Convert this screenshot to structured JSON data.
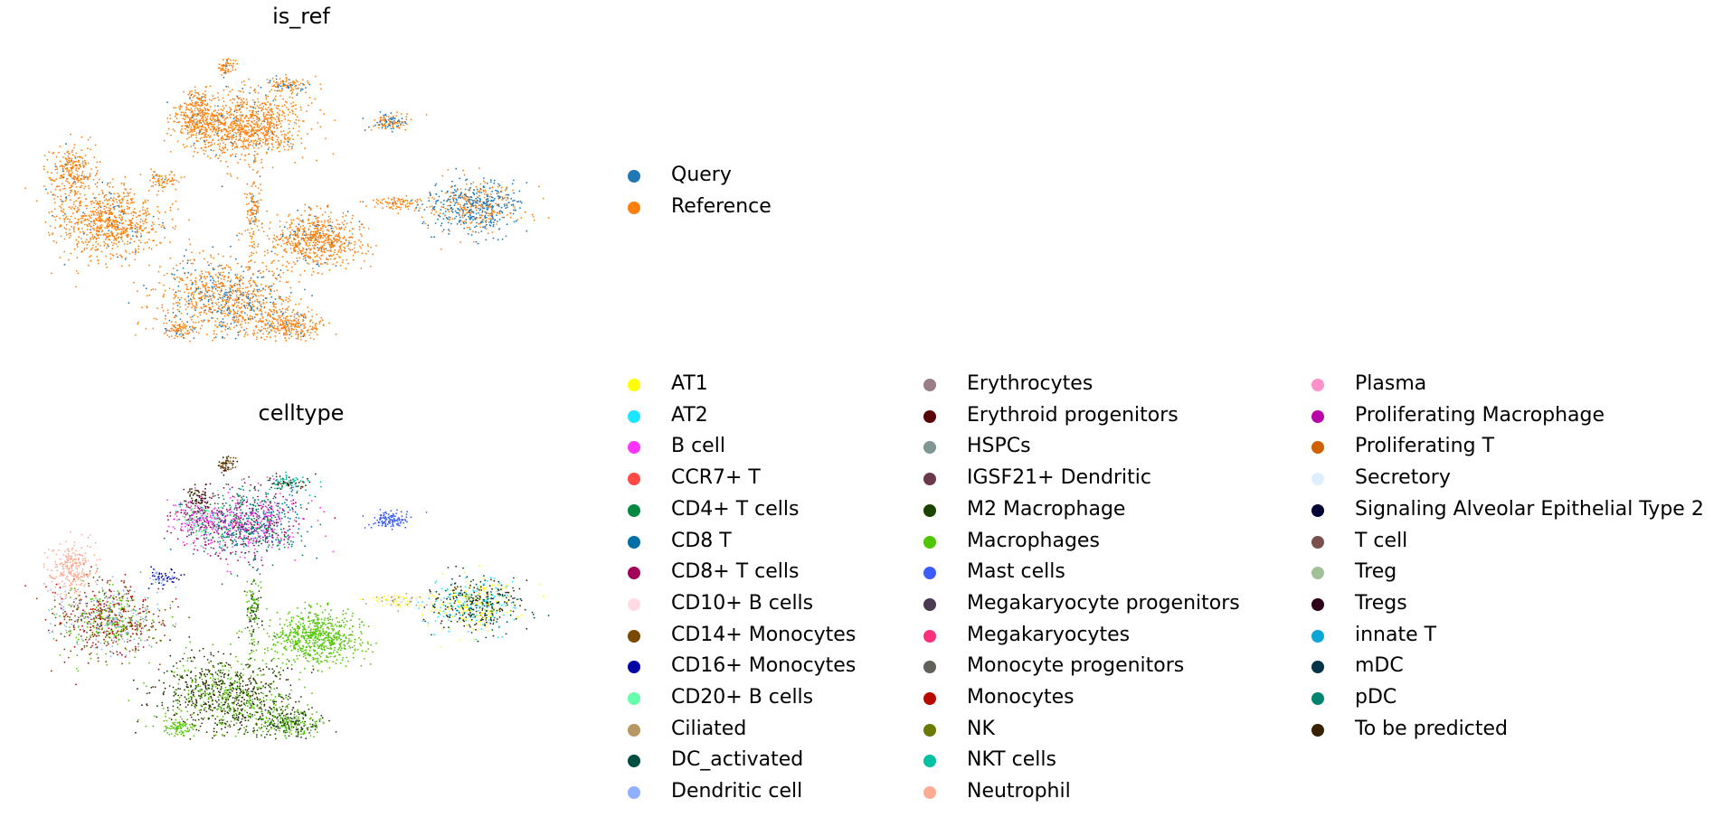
{
  "chart_data": [
    {
      "type": "scatter",
      "title": "is_ref",
      "xlabel": "",
      "ylabel": "",
      "grid": false,
      "legend": {
        "placement": "right",
        "entries": [
          {
            "name": "Query",
            "color": "#1f77b4"
          },
          {
            "name": "Reference",
            "color": "#ff7f0e"
          }
        ]
      }
    },
    {
      "type": "scatter",
      "title": "celltype",
      "xlabel": "",
      "ylabel": "",
      "grid": false,
      "legend": {
        "placement": "right",
        "columns": 3,
        "entries": [
          {
            "name": "AT1",
            "color": "#ffff00"
          },
          {
            "name": "AT2",
            "color": "#1ce6ff"
          },
          {
            "name": "B cell",
            "color": "#ff34ff"
          },
          {
            "name": "CCR7+ T",
            "color": "#ff4a46"
          },
          {
            "name": "CD4+ T cells",
            "color": "#008941"
          },
          {
            "name": "CD8 T",
            "color": "#006fa6"
          },
          {
            "name": "CD8+ T cells",
            "color": "#a30059"
          },
          {
            "name": "CD10+ B cells",
            "color": "#ffdbe5"
          },
          {
            "name": "CD14+ Monocytes",
            "color": "#7a4900"
          },
          {
            "name": "CD16+ Monocytes",
            "color": "#0000a6"
          },
          {
            "name": "CD20+ B cells",
            "color": "#63ffac"
          },
          {
            "name": "Ciliated",
            "color": "#b79762"
          },
          {
            "name": "DC_activated",
            "color": "#004d43"
          },
          {
            "name": "Dendritic cell",
            "color": "#8fb0ff"
          },
          {
            "name": "Erythrocytes",
            "color": "#997d87"
          },
          {
            "name": "Erythroid progenitors",
            "color": "#5a0007"
          },
          {
            "name": "HSPCs",
            "color": "#809693"
          },
          {
            "name": "IGSF21+ Dendritic",
            "color": "#6a3a4c"
          },
          {
            "name": "M2 Macrophage",
            "color": "#1b4400"
          },
          {
            "name": "Macrophages",
            "color": "#4fc601"
          },
          {
            "name": "Mast cells",
            "color": "#3b5dff"
          },
          {
            "name": "Megakaryocyte progenitors",
            "color": "#4a3b53"
          },
          {
            "name": "Megakaryocytes",
            "color": "#ff2f80"
          },
          {
            "name": "Monocyte progenitors",
            "color": "#61615a"
          },
          {
            "name": "Monocytes",
            "color": "#ba0900"
          },
          {
            "name": "NK",
            "color": "#6b7900"
          },
          {
            "name": "NKT cells",
            "color": "#00c2a0"
          },
          {
            "name": "Neutrophil",
            "color": "#ffaa92"
          },
          {
            "name": "Plasma",
            "color": "#ff90c9"
          },
          {
            "name": "Proliferating Macrophage",
            "color": "#b903aa"
          },
          {
            "name": "Proliferating T",
            "color": "#d16100"
          },
          {
            "name": "Secretory",
            "color": "#ddefff"
          },
          {
            "name": "Signaling Alveolar Epithelial Type 2",
            "color": "#000035"
          },
          {
            "name": "T cell",
            "color": "#7b4f4b"
          },
          {
            "name": "Treg",
            "color": "#a1c299"
          },
          {
            "name": "Tregs",
            "color": "#300018"
          },
          {
            "name": "innate T",
            "color": "#0aa6d8"
          },
          {
            "name": "mDC",
            "color": "#013349"
          },
          {
            "name": "pDC",
            "color": "#00846f"
          },
          {
            "name": "To be predicted",
            "color": "#372101"
          }
        ]
      }
    }
  ]
}
